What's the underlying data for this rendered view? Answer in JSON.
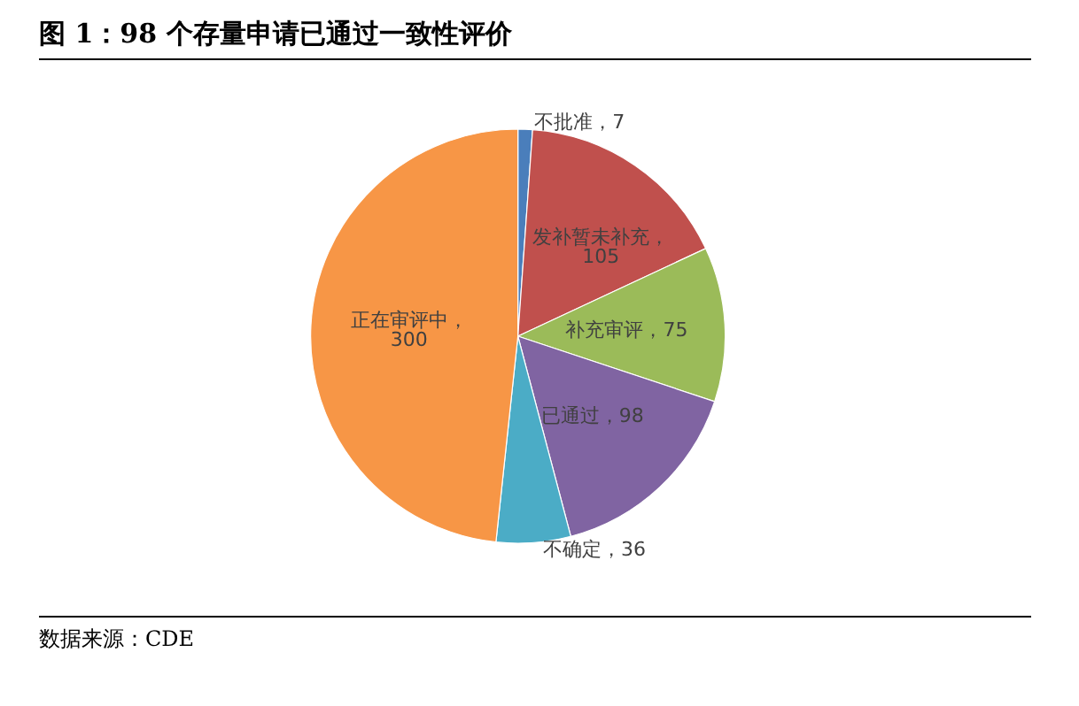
{
  "chart_data": {
    "type": "pie",
    "title": "图 1：98 个存量申请已通过一致性评价",
    "categories": [
      "不批准，7",
      "发补暂未补充，105",
      "补充审评，75",
      "已通过，98",
      "不确定，36",
      "正在审评中，300"
    ],
    "values": [
      7,
      105,
      75,
      98,
      36,
      300
    ],
    "colors": [
      "#4a7ebb",
      "#c0504d",
      "#9bbb59",
      "#8064a2",
      "#4bacc6",
      "#f79646"
    ],
    "legend": false,
    "annotations": [
      "数据来源：CDE"
    ]
  }
}
